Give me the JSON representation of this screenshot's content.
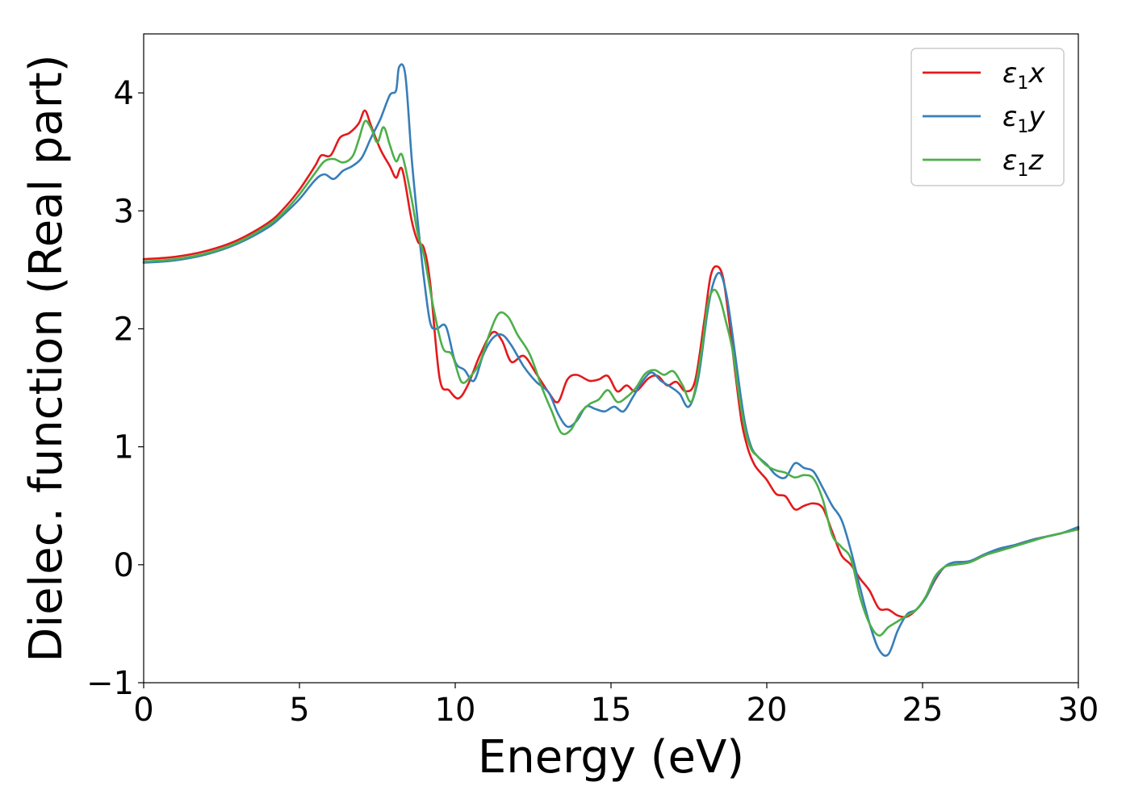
{
  "chart_data": {
    "type": "line",
    "xlabel": "Energy (eV)",
    "ylabel": "Dielec. function (Real part)",
    "xlim": [
      0,
      30
    ],
    "ylim": [
      -1,
      4.5
    ],
    "xticks": [
      0,
      5,
      10,
      15,
      20,
      25,
      30
    ],
    "yticks": [
      -1,
      0,
      1,
      2,
      3,
      4
    ],
    "xtick_labels": [
      "0",
      "5",
      "10",
      "15",
      "20",
      "25",
      "30"
    ],
    "ytick_labels": [
      "−1",
      "0",
      "1",
      "2",
      "3",
      "4"
    ],
    "grid": false,
    "legend_position": "top-right",
    "series": [
      {
        "name_main": "ε",
        "name_sub": "1",
        "name_suffix": "x",
        "color": "#e41a1c",
        "x": [
          0,
          1,
          2,
          3,
          4,
          4.5,
          5,
          5.5,
          5.7,
          6.0,
          6.3,
          6.6,
          6.9,
          7.1,
          7.3,
          7.6,
          7.9,
          8.1,
          8.3,
          8.6,
          8.8,
          9.0,
          9.2,
          9.5,
          9.8,
          10.1,
          10.4,
          10.8,
          11.2,
          11.5,
          11.8,
          12.2,
          12.6,
          13.0,
          13.3,
          13.6,
          13.9,
          14.3,
          14.6,
          14.9,
          15.2,
          15.5,
          15.8,
          16.2,
          16.5,
          16.8,
          17.1,
          17.4,
          17.7,
          18.0,
          18.2,
          18.4,
          18.6,
          18.8,
          19.0,
          19.2,
          19.4,
          19.6,
          19.8,
          20.0,
          20.3,
          20.6,
          20.9,
          21.2,
          21.5,
          21.8,
          22.1,
          22.4,
          22.7,
          23.0,
          23.3,
          23.6,
          23.9,
          24.2,
          24.5,
          24.8,
          25.1,
          25.4,
          25.7,
          26.0,
          26.5,
          27.0,
          27.5,
          28.0,
          28.5,
          29.0,
          29.5,
          30.0
        ],
        "y": [
          2.59,
          2.61,
          2.66,
          2.75,
          2.9,
          3.02,
          3.18,
          3.38,
          3.47,
          3.47,
          3.62,
          3.66,
          3.74,
          3.85,
          3.72,
          3.52,
          3.38,
          3.28,
          3.35,
          2.92,
          2.74,
          2.68,
          2.38,
          1.58,
          1.48,
          1.41,
          1.52,
          1.78,
          1.97,
          1.9,
          1.72,
          1.77,
          1.62,
          1.46,
          1.38,
          1.57,
          1.61,
          1.56,
          1.57,
          1.6,
          1.47,
          1.52,
          1.47,
          1.58,
          1.6,
          1.52,
          1.55,
          1.47,
          1.56,
          2.08,
          2.45,
          2.53,
          2.43,
          2.05,
          1.6,
          1.2,
          0.98,
          0.85,
          0.78,
          0.72,
          0.6,
          0.58,
          0.47,
          0.5,
          0.52,
          0.48,
          0.28,
          0.08,
          0.0,
          -0.12,
          -0.22,
          -0.37,
          -0.38,
          -0.43,
          -0.44,
          -0.38,
          -0.28,
          -0.13,
          -0.02,
          0.0,
          0.02,
          0.08,
          0.13,
          0.17,
          0.21,
          0.24,
          0.27,
          0.31
        ]
      },
      {
        "name_main": "ε",
        "name_sub": "1",
        "name_suffix": "y",
        "color": "#377eb8",
        "x": [
          0,
          1,
          2,
          3,
          4,
          4.5,
          5,
          5.5,
          5.8,
          6.1,
          6.4,
          6.7,
          7.0,
          7.3,
          7.6,
          7.9,
          8.1,
          8.2,
          8.4,
          8.6,
          8.8,
          9.0,
          9.2,
          9.4,
          9.7,
          10.0,
          10.3,
          10.6,
          10.9,
          11.2,
          11.5,
          11.8,
          12.2,
          12.6,
          13.0,
          13.3,
          13.6,
          13.9,
          14.2,
          14.5,
          14.8,
          15.1,
          15.4,
          15.7,
          16.0,
          16.3,
          16.6,
          16.9,
          17.2,
          17.5,
          17.8,
          18.1,
          18.3,
          18.5,
          18.7,
          18.9,
          19.1,
          19.3,
          19.5,
          19.7,
          20.0,
          20.3,
          20.6,
          20.9,
          21.2,
          21.5,
          21.8,
          22.1,
          22.4,
          22.7,
          23.0,
          23.3,
          23.6,
          23.9,
          24.2,
          24.5,
          24.8,
          25.1,
          25.4,
          25.7,
          26.0,
          26.5,
          27.0,
          27.5,
          28.0,
          28.5,
          29.0,
          29.5,
          30.0
        ],
        "y": [
          2.56,
          2.58,
          2.63,
          2.72,
          2.86,
          2.97,
          3.1,
          3.26,
          3.31,
          3.27,
          3.34,
          3.38,
          3.45,
          3.62,
          3.78,
          3.98,
          4.02,
          4.22,
          4.15,
          3.45,
          2.9,
          2.42,
          2.05,
          2.0,
          2.02,
          1.72,
          1.65,
          1.56,
          1.78,
          1.92,
          1.95,
          1.86,
          1.68,
          1.55,
          1.46,
          1.28,
          1.17,
          1.22,
          1.34,
          1.32,
          1.3,
          1.34,
          1.3,
          1.42,
          1.55,
          1.63,
          1.56,
          1.51,
          1.45,
          1.34,
          1.58,
          2.15,
          2.4,
          2.47,
          2.3,
          1.95,
          1.55,
          1.2,
          1.0,
          0.92,
          0.85,
          0.76,
          0.74,
          0.86,
          0.82,
          0.79,
          0.65,
          0.5,
          0.38,
          0.12,
          -0.2,
          -0.5,
          -0.72,
          -0.76,
          -0.56,
          -0.42,
          -0.38,
          -0.28,
          -0.12,
          -0.02,
          0.02,
          0.03,
          0.09,
          0.14,
          0.17,
          0.21,
          0.24,
          0.27,
          0.32
        ]
      },
      {
        "name_main": "ε",
        "name_sub": "1",
        "name_suffix": "z",
        "color": "#4daf4a",
        "x": [
          0,
          1,
          2,
          3,
          4,
          4.5,
          5,
          5.5,
          5.8,
          6.1,
          6.4,
          6.7,
          6.9,
          7.1,
          7.3,
          7.5,
          7.7,
          7.9,
          8.1,
          8.3,
          8.6,
          8.8,
          9.0,
          9.3,
          9.6,
          9.9,
          10.2,
          10.5,
          10.8,
          11.1,
          11.4,
          11.7,
          12.0,
          12.4,
          12.8,
          13.1,
          13.4,
          13.7,
          14.0,
          14.3,
          14.6,
          14.9,
          15.2,
          15.5,
          15.8,
          16.1,
          16.4,
          16.7,
          17.0,
          17.3,
          17.6,
          17.9,
          18.1,
          18.3,
          18.5,
          18.7,
          18.9,
          19.1,
          19.3,
          19.5,
          19.7,
          20.0,
          20.3,
          20.6,
          20.9,
          21.2,
          21.5,
          21.8,
          22.1,
          22.4,
          22.7,
          23.0,
          23.3,
          23.6,
          23.9,
          24.2,
          24.5,
          24.8,
          25.1,
          25.4,
          25.7,
          26.0,
          26.5,
          27.0,
          27.5,
          28.0,
          28.5,
          29.0,
          29.5,
          30.0
        ],
        "y": [
          2.57,
          2.59,
          2.64,
          2.73,
          2.88,
          2.99,
          3.14,
          3.32,
          3.42,
          3.44,
          3.41,
          3.46,
          3.6,
          3.76,
          3.7,
          3.58,
          3.71,
          3.56,
          3.42,
          3.47,
          3.1,
          2.8,
          2.62,
          2.18,
          1.84,
          1.78,
          1.55,
          1.6,
          1.72,
          1.96,
          2.13,
          2.1,
          1.95,
          1.78,
          1.49,
          1.3,
          1.12,
          1.14,
          1.28,
          1.36,
          1.4,
          1.48,
          1.38,
          1.42,
          1.5,
          1.62,
          1.65,
          1.61,
          1.64,
          1.52,
          1.39,
          1.8,
          2.2,
          2.33,
          2.25,
          2.05,
          1.82,
          1.45,
          1.15,
          0.98,
          0.92,
          0.84,
          0.8,
          0.78,
          0.74,
          0.76,
          0.73,
          0.55,
          0.25,
          0.15,
          0.05,
          -0.28,
          -0.5,
          -0.6,
          -0.53,
          -0.48,
          -0.43,
          -0.38,
          -0.27,
          -0.1,
          -0.02,
          0.0,
          0.02,
          0.08,
          0.12,
          0.16,
          0.2,
          0.24,
          0.27,
          0.3
        ]
      }
    ]
  }
}
